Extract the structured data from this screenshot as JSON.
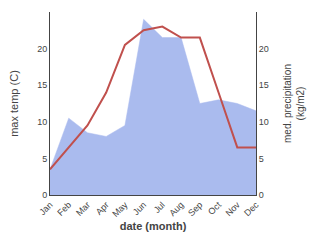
{
  "chart_data": {
    "type": "line",
    "categories": [
      "Jan",
      "Feb",
      "Mar",
      "Apr",
      "May",
      "Jun",
      "Jul",
      "Aug",
      "Sep",
      "Oct",
      "Nov",
      "Dec"
    ],
    "series": [
      {
        "name": "med. precipitation",
        "type": "area",
        "axis": "y2",
        "color": "#aabbee",
        "values": [
          3.5,
          10.5,
          8.5,
          8.0,
          9.5,
          24.0,
          21.5,
          21.5,
          12.5,
          13.0,
          12.5,
          11.5
        ]
      },
      {
        "name": "max temp",
        "type": "line",
        "axis": "y",
        "color": "#c0504d",
        "values": [
          3.5,
          6.5,
          9.5,
          14.0,
          20.5,
          22.5,
          23.0,
          21.5,
          21.5,
          14.0,
          6.5,
          6.5
        ]
      }
    ],
    "xlabel": "date (month)",
    "ylabel": "max temp (C)",
    "y2label": "med. precipitation\n(kg/m2)",
    "ylim": [
      0,
      25
    ],
    "yticks": [
      0,
      5,
      10,
      15,
      20
    ],
    "y2lim": [
      0,
      25
    ],
    "y2ticks": [
      0,
      5,
      10,
      15,
      20
    ],
    "grid": false
  }
}
